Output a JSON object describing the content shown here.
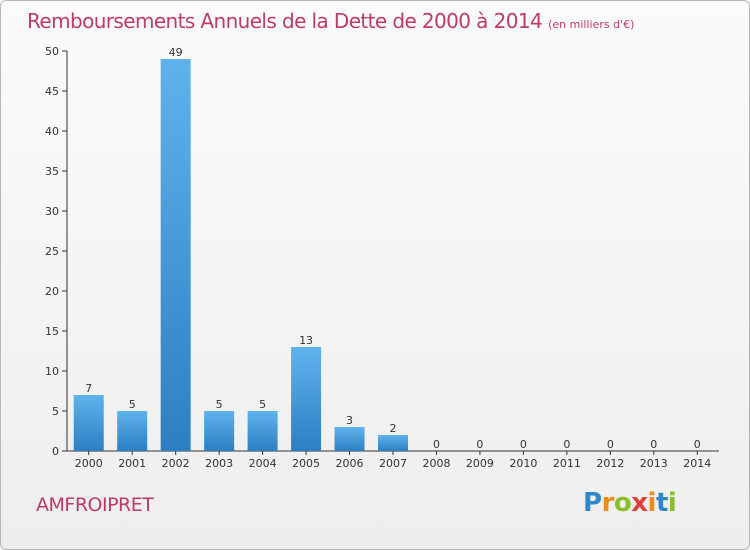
{
  "header": {
    "title": "Remboursements Annuels de la Dette de 2000 à 2014",
    "unit": "(en milliers d'€)"
  },
  "footer": {
    "commune": "AMFROIPRET",
    "logo_letters": [
      "P",
      "r",
      "o",
      "x",
      "i",
      "t",
      "i"
    ],
    "logo_colors": [
      "#2f86c8",
      "#f08a1c",
      "#8bbf2a",
      "#e23c3c",
      "#f08a1c",
      "#2f86c8",
      "#8bbf2a"
    ]
  },
  "colors": {
    "title": "#bf3a66",
    "bar_top": "#5fb3ec",
    "bar_bottom": "#2c7fc2",
    "axis": "#333333"
  },
  "chart_data": {
    "type": "bar",
    "title": "Remboursements Annuels de la Dette de 2000 à 2014",
    "xlabel": "",
    "ylabel": "",
    "categories": [
      "2000",
      "2001",
      "2002",
      "2003",
      "2004",
      "2005",
      "2006",
      "2007",
      "2008",
      "2009",
      "2010",
      "2011",
      "2012",
      "2013",
      "2014"
    ],
    "values": [
      7,
      5,
      49,
      5,
      5,
      13,
      3,
      2,
      0,
      0,
      0,
      0,
      0,
      0,
      0
    ],
    "ylim": [
      0,
      50
    ],
    "yticks": [
      0,
      5,
      10,
      15,
      20,
      25,
      30,
      35,
      40,
      45,
      50
    ],
    "grid": false,
    "legend": "none"
  }
}
